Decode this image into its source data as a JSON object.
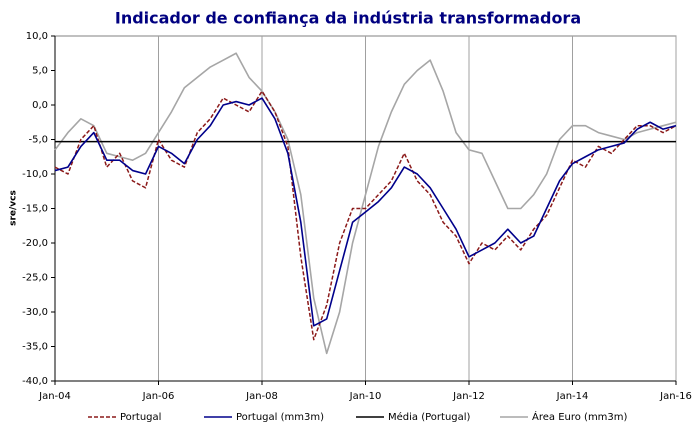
{
  "chart_data": {
    "type": "line",
    "title": "Indicador de confiança da indústria transformadora",
    "y_label": "sre/vcs",
    "x": [
      2004,
      2004.25,
      2004.5,
      2004.75,
      2005,
      2005.25,
      2005.5,
      2005.75,
      2006,
      2006.25,
      2006.5,
      2006.75,
      2007,
      2007.25,
      2007.5,
      2007.75,
      2008,
      2008.25,
      2008.5,
      2008.75,
      2009,
      2009.25,
      2009.5,
      2009.75,
      2010,
      2010.25,
      2010.5,
      2010.75,
      2011,
      2011.25,
      2011.5,
      2011.75,
      2012,
      2012.25,
      2012.5,
      2012.75,
      2013,
      2013.25,
      2013.5,
      2013.75,
      2014,
      2014.25,
      2014.5,
      2014.75,
      2015,
      2015.25,
      2015.5,
      2015.75,
      2016
    ],
    "series": [
      {
        "name": "Portugal",
        "color": "#8b1a1a",
        "dash": true,
        "values": [
          -9,
          -10,
          -5,
          -3,
          -9,
          -7,
          -11,
          -12,
          -5,
          -8,
          -9,
          -4,
          -2,
          1,
          0,
          -1,
          2,
          -1,
          -6,
          -22,
          -34,
          -29,
          -20,
          -15,
          -15,
          -13,
          -11,
          -7,
          -11,
          -13,
          -17,
          -19,
          -23,
          -20,
          -21,
          -19,
          -21,
          -18,
          -16,
          -12,
          -8,
          -9,
          -6,
          -7,
          -5,
          -3,
          -3,
          -4,
          -3
        ]
      },
      {
        "name": "Portugal (mm3m)",
        "color": "#00008b",
        "values": [
          -9.5,
          -9,
          -6,
          -4,
          -8,
          -8,
          -9.5,
          -10,
          -6,
          -7,
          -8.5,
          -5,
          -3,
          0,
          0.5,
          0,
          1,
          -2,
          -7,
          -17,
          -32,
          -31,
          -24,
          -17,
          -15.5,
          -14,
          -12,
          -9,
          -10,
          -12,
          -15,
          -18,
          -22,
          -21,
          -20,
          -18,
          -20,
          -19,
          -15,
          -11,
          -8.5,
          -7.5,
          -6.5,
          -6,
          -5.5,
          -3.5,
          -2.5,
          -3.5,
          -3
        ]
      },
      {
        "name": "Média (Portugal)",
        "color": "#000000",
        "hline": -5.3
      },
      {
        "name": "Área Euro (mm3m)",
        "color": "#a6a6a6",
        "values": [
          -6.5,
          -4,
          -2,
          -3,
          -7,
          -7.5,
          -8,
          -7,
          -4,
          -1,
          2.5,
          4,
          5.5,
          6.5,
          7.5,
          4,
          2,
          -1,
          -5,
          -13,
          -28,
          -36,
          -30,
          -20,
          -13,
          -6,
          -1,
          3,
          5,
          6.5,
          2,
          -4,
          -6.5,
          -7,
          -11,
          -15,
          -15,
          -13,
          -10,
          -5,
          -3,
          -3,
          -4,
          -4.5,
          -5,
          -4,
          -3.5,
          -3,
          -2.5
        ]
      }
    ],
    "xlim": [
      2004,
      2016
    ],
    "xticks": [
      {
        "value": 2004,
        "label": "Jan-04"
      },
      {
        "value": 2006,
        "label": "Jan-06"
      },
      {
        "value": 2008,
        "label": "Jan-08"
      },
      {
        "value": 2010,
        "label": "Jan-10"
      },
      {
        "value": 2012,
        "label": "Jan-12"
      },
      {
        "value": 2014,
        "label": "Jan-14"
      },
      {
        "value": 2016,
        "label": "Jan-16"
      }
    ],
    "ylim": [
      -40,
      10
    ],
    "yticks": [
      {
        "value": -40,
        "label": "-40,0"
      },
      {
        "value": -35,
        "label": "-35,0"
      },
      {
        "value": -30,
        "label": "-30,0"
      },
      {
        "value": -25,
        "label": "-25,0"
      },
      {
        "value": -20,
        "label": "-20,0"
      },
      {
        "value": -15,
        "label": "-15,0"
      },
      {
        "value": -10,
        "label": "-10,0"
      },
      {
        "value": -5,
        "label": "-5,0"
      },
      {
        "value": 0,
        "label": "0,0"
      },
      {
        "value": 5,
        "label": "5,0"
      },
      {
        "value": 10,
        "label": "10,0"
      }
    ],
    "grid": "x"
  }
}
